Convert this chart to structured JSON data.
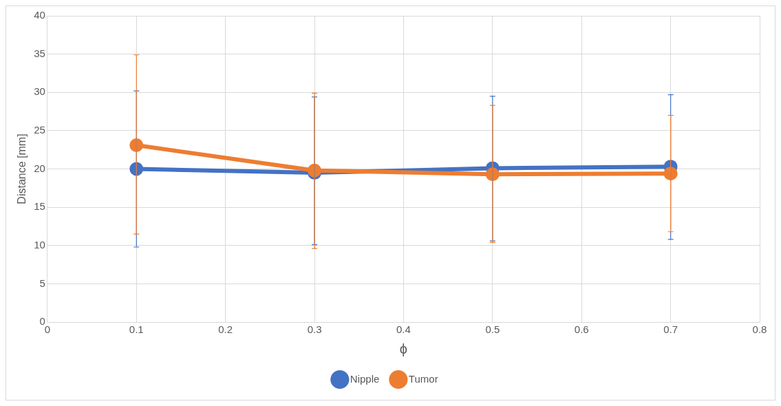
{
  "chart_data": {
    "type": "line",
    "xlabel": "ϕ",
    "ylabel": "Distance [mm]",
    "x": [
      0.1,
      0.3,
      0.5,
      0.7
    ],
    "xlim": [
      0,
      0.8
    ],
    "xticks": [
      0,
      0.1,
      0.2,
      0.3,
      0.4,
      0.5,
      0.6,
      0.7,
      0.8
    ],
    "ylim": [
      0,
      40
    ],
    "yticks": [
      0,
      5,
      10,
      15,
      20,
      25,
      30,
      35,
      40
    ],
    "grid": true,
    "legend": "bottom",
    "marker": "circle",
    "line_style": "solid",
    "series": [
      {
        "name": "Nipple",
        "color": "#4472c4",
        "values": [
          20,
          19.5,
          20.1,
          20.3
        ],
        "errors": [
          [
            9.8,
            30.2
          ],
          [
            10.1,
            29.4
          ],
          [
            10.6,
            29.5
          ],
          [
            10.8,
            29.7
          ]
        ]
      },
      {
        "name": "Tumor",
        "color": "#ed7d31",
        "values": [
          23.1,
          19.8,
          19.3,
          19.4
        ],
        "errors": [
          [
            11.5,
            34.9
          ],
          [
            9.6,
            29.9
          ],
          [
            10.4,
            28.3
          ],
          [
            11.8,
            27.0
          ]
        ]
      }
    ]
  }
}
